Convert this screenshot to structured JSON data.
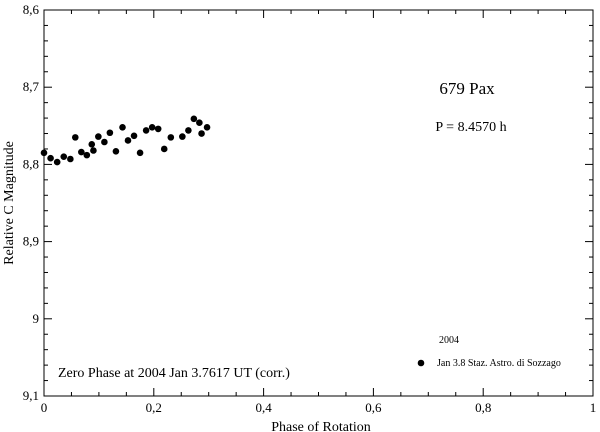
{
  "chart_data": {
    "type": "scatter",
    "xlabel": "Phase of Rotation",
    "ylabel": "Relative C Magnitude",
    "xlim": [
      0,
      1
    ],
    "ylim": [
      8.6,
      9.1
    ],
    "y_inverted": true,
    "grid": false,
    "x_ticks": [
      0,
      0.2,
      0.4,
      0.6,
      0.8,
      1
    ],
    "x_tick_labels": [
      "0",
      "0,2",
      "0,4",
      "0,6",
      "0,8",
      "1"
    ],
    "y_ticks": [
      8.6,
      8.7,
      8.8,
      8.9,
      9.0,
      9.1
    ],
    "y_tick_labels": [
      "8,6",
      "8,7",
      "8,8",
      "8,9",
      "9",
      "9,1"
    ],
    "annotations": {
      "object": "679 Pax",
      "period": "P = 8.4570 h",
      "zero_phase": "Zero Phase at 2004 Jan 3.7617 UT (corr.)"
    },
    "legend": {
      "title": "2004",
      "placement": "bottom-right",
      "entry": "Jan 3.8 Staz. Astro. di Sozzago"
    },
    "series": [
      {
        "name": "Jan 3.8 Staz. Astro. di Sozzago",
        "marker": "filled-circle",
        "color": "#000000",
        "points": [
          [
            0.0,
            8.785
          ],
          [
            0.012,
            8.792
          ],
          [
            0.024,
            8.797
          ],
          [
            0.036,
            8.79
          ],
          [
            0.048,
            8.793
          ],
          [
            0.057,
            8.765
          ],
          [
            0.068,
            8.784
          ],
          [
            0.078,
            8.788
          ],
          [
            0.087,
            8.774
          ],
          [
            0.09,
            8.782
          ],
          [
            0.099,
            8.764
          ],
          [
            0.11,
            8.771
          ],
          [
            0.12,
            8.759
          ],
          [
            0.131,
            8.783
          ],
          [
            0.143,
            8.752
          ],
          [
            0.153,
            8.769
          ],
          [
            0.164,
            8.763
          ],
          [
            0.175,
            8.785
          ],
          [
            0.186,
            8.756
          ],
          [
            0.197,
            8.752
          ],
          [
            0.208,
            8.754
          ],
          [
            0.219,
            8.78
          ],
          [
            0.231,
            8.765
          ],
          [
            0.252,
            8.764
          ],
          [
            0.263,
            8.756
          ],
          [
            0.273,
            8.741
          ],
          [
            0.283,
            8.746
          ],
          [
            0.287,
            8.76
          ],
          [
            0.297,
            8.752
          ]
        ]
      }
    ]
  }
}
